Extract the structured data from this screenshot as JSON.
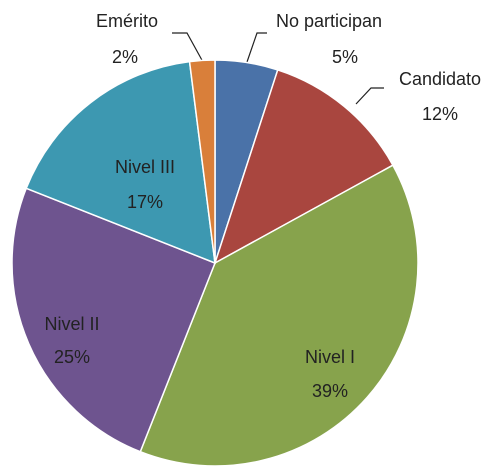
{
  "chart_data": {
    "type": "pie",
    "categories": [
      "No participan",
      "Candidato",
      "Nivel I",
      "Nivel II",
      "Nivel III",
      "Emérito"
    ],
    "values": [
      5,
      12,
      39,
      25,
      17,
      2
    ],
    "value_labels": [
      "5%",
      "12%",
      "39%",
      "25%",
      "17%",
      "2%"
    ],
    "colors": [
      "#4a72a8",
      "#a9463f",
      "#87a34c",
      "#6e548f",
      "#3d98b1",
      "#d97f3a"
    ]
  }
}
